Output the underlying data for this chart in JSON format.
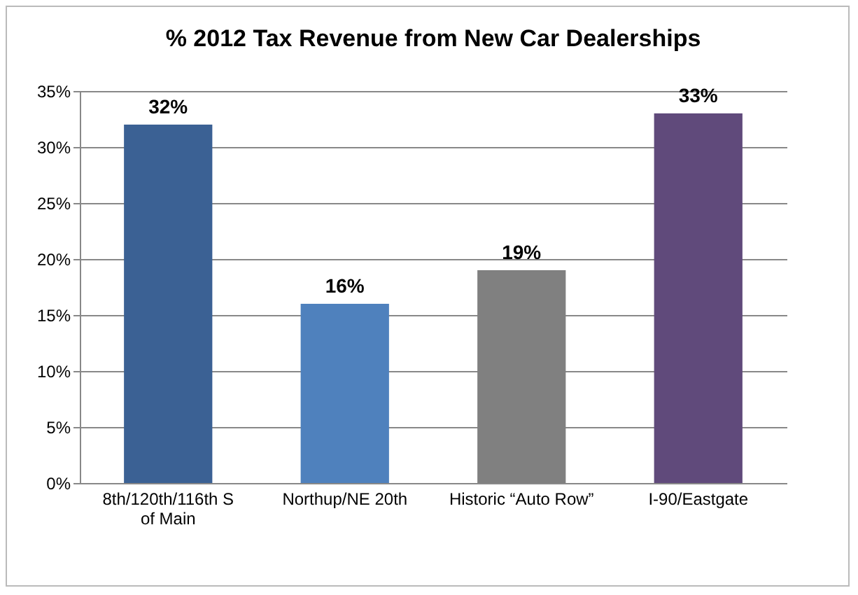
{
  "chart_data": {
    "type": "bar",
    "title": "% 2012 Tax Revenue from New Car Dealerships",
    "categories": [
      "8th/120th/116th S of Main",
      "Northup/NE 20th",
      "Historic “Auto Row”",
      "I-90/Eastgate"
    ],
    "values": [
      32,
      16,
      19,
      33
    ],
    "colors": [
      "#3b6194",
      "#4f81bd",
      "#808080",
      "#604a7b"
    ],
    "value_labels": [
      "32%",
      "16%",
      "19%",
      "33%"
    ],
    "ylim": [
      0,
      35
    ],
    "yticks": [
      {
        "value": 0,
        "label": "0%"
      },
      {
        "value": 5,
        "label": "5%"
      },
      {
        "value": 10,
        "label": "10%"
      },
      {
        "value": 15,
        "label": "15%"
      },
      {
        "value": 20,
        "label": "20%"
      },
      {
        "value": 25,
        "label": "25%"
      },
      {
        "value": 30,
        "label": "30%"
      },
      {
        "value": 35,
        "label": "35%"
      }
    ],
    "grid": "y"
  }
}
